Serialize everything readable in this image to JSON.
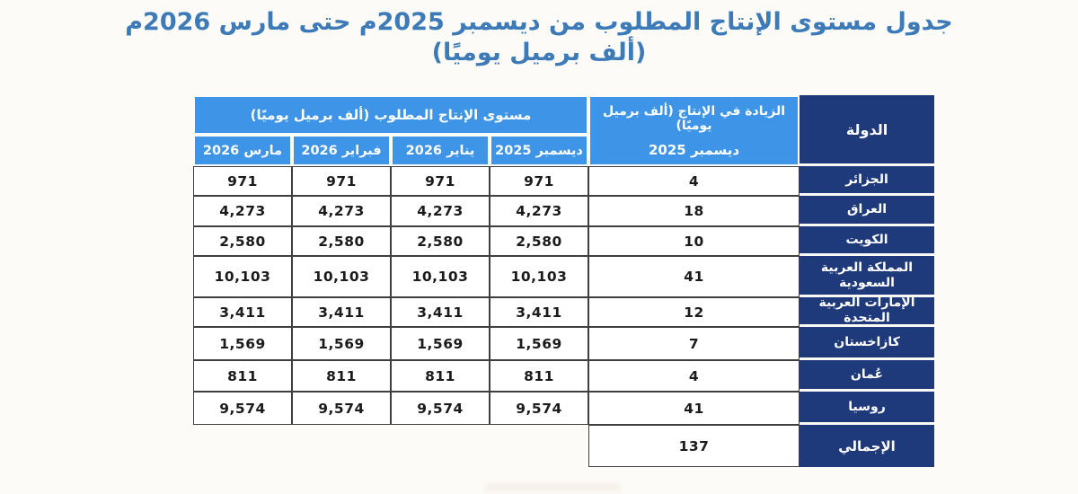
{
  "title": {
    "line1": "جدول مستوى الإنتاج المطلوب من ديسمبر 2025م حتى مارس 2026م",
    "line2": "(ألف برميل يوميًا)"
  },
  "table": {
    "production_group_header": "مستوى الإنتاج المطلوب (ألف برميل يوميًا)",
    "increase_header": {
      "line1": "الزيادة في الإنتاج (ألف برميل يوميًا)",
      "line2": "ديسمبر 2025"
    },
    "country_header": "الدولة",
    "month_columns": [
      "مارس 2026",
      "فبراير 2026",
      "يناير 2026",
      "ديسمبر 2025"
    ],
    "rows": [
      {
        "country": "الجزائر",
        "increase": "4",
        "values": [
          "971",
          "971",
          "971",
          "971"
        ]
      },
      {
        "country": "العراق",
        "increase": "18",
        "values": [
          "4,273",
          "4,273",
          "4,273",
          "4,273"
        ]
      },
      {
        "country": "الكويت",
        "increase": "10",
        "values": [
          "2,580",
          "2,580",
          "2,580",
          "2,580"
        ]
      },
      {
        "country": "المملكة العربية السعودية",
        "increase": "41",
        "values": [
          "10,103",
          "10,103",
          "10,103",
          "10,103"
        ]
      },
      {
        "country": "الإمارات العربية المتحدة",
        "increase": "12",
        "values": [
          "3,411",
          "3,411",
          "3,411",
          "3,411"
        ]
      },
      {
        "country": "كازاخستان",
        "increase": "7",
        "values": [
          "1,569",
          "1,569",
          "1,569",
          "1,569"
        ]
      },
      {
        "country": "عُمان",
        "increase": "4",
        "values": [
          "811",
          "811",
          "811",
          "811"
        ]
      },
      {
        "country": "روسيا",
        "increase": "41",
        "values": [
          "9,574",
          "9,574",
          "9,574",
          "9,574"
        ]
      }
    ],
    "total_row": {
      "country": "الإجمالي",
      "increase": "137"
    }
  },
  "chart_data": {
    "type": "table",
    "title": "جدول مستوى الإنتاج المطلوب من ديسمبر 2025م حتى مارس 2026م (ألف برميل يوميًا)",
    "columns": [
      "الدولة",
      "الزيادة في الإنتاج (ألف برميل يوميًا) ديسمبر 2025",
      "ديسمبر 2025",
      "يناير 2026",
      "فبراير 2026",
      "مارس 2026"
    ],
    "rows": [
      [
        "الجزائر",
        4,
        971,
        971,
        971,
        971
      ],
      [
        "العراق",
        18,
        4273,
        4273,
        4273,
        4273
      ],
      [
        "الكويت",
        10,
        2580,
        2580,
        2580,
        2580
      ],
      [
        "المملكة العربية السعودية",
        41,
        10103,
        10103,
        10103,
        10103
      ],
      [
        "الإمارات العربية المتحدة",
        12,
        3411,
        3411,
        3411,
        3411
      ],
      [
        "كازاخستان",
        7,
        1569,
        1569,
        1569,
        1569
      ],
      [
        "عُمان",
        4,
        811,
        811,
        811,
        811
      ],
      [
        "روسيا",
        41,
        9574,
        9574,
        9574,
        9574
      ],
      [
        "الإجمالي",
        137,
        null,
        null,
        null,
        null
      ]
    ]
  },
  "colors": {
    "title_text": "#3d7ab8",
    "header_blue": "#3e94e6",
    "header_navy": "#1e3a7a",
    "cell_border": "#3e3e3e",
    "value_text": "#1b1b1b",
    "background": "#fcfbf8"
  }
}
